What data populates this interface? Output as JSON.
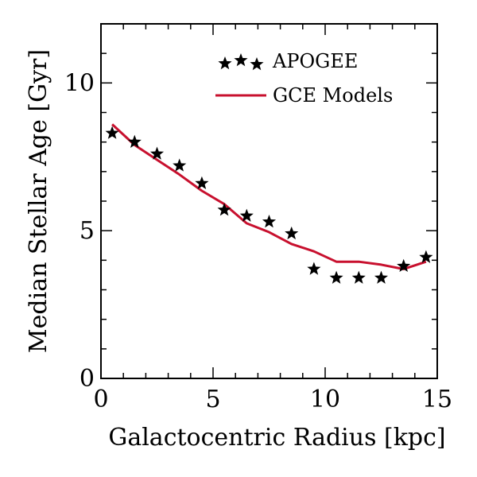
{
  "chart_data": {
    "type": "scatter",
    "xlabel": "Galactocentric Radius [kpc]",
    "ylabel": "Median Stellar Age [Gyr]",
    "xlim": [
      0,
      15
    ],
    "ylim": [
      0,
      12
    ],
    "x_ticks": [
      0,
      5,
      10,
      15
    ],
    "y_ticks": [
      0,
      5,
      10
    ],
    "x_tick_labels": [
      "0",
      "5",
      "10",
      "15"
    ],
    "y_tick_labels": [
      "0",
      "5",
      "10"
    ],
    "grid": false,
    "legend_position": "top-right",
    "series": [
      {
        "name": "APOGEE",
        "type": "scatter",
        "marker": "star",
        "color": "#000000",
        "x": [
          0.5,
          1.5,
          2.5,
          3.5,
          4.5,
          5.5,
          6.5,
          7.5,
          8.5,
          9.5,
          10.5,
          11.5,
          12.5,
          13.5,
          14.5
        ],
        "y": [
          8.3,
          8.0,
          7.6,
          7.2,
          6.6,
          5.7,
          5.5,
          5.3,
          4.9,
          3.7,
          3.4,
          3.4,
          3.4,
          3.8,
          4.1
        ]
      },
      {
        "name": "GCE Models",
        "type": "line",
        "color": "#c8102e",
        "x": [
          0.5,
          1.5,
          2.5,
          3.5,
          4.5,
          5.5,
          6.5,
          7.5,
          8.5,
          9.5,
          10.5,
          11.5,
          12.5,
          13.5,
          14.5
        ],
        "y": [
          8.6,
          7.9,
          7.4,
          6.9,
          6.35,
          5.9,
          5.25,
          4.95,
          4.55,
          4.3,
          3.95,
          3.95,
          3.85,
          3.7,
          3.95
        ]
      }
    ]
  }
}
